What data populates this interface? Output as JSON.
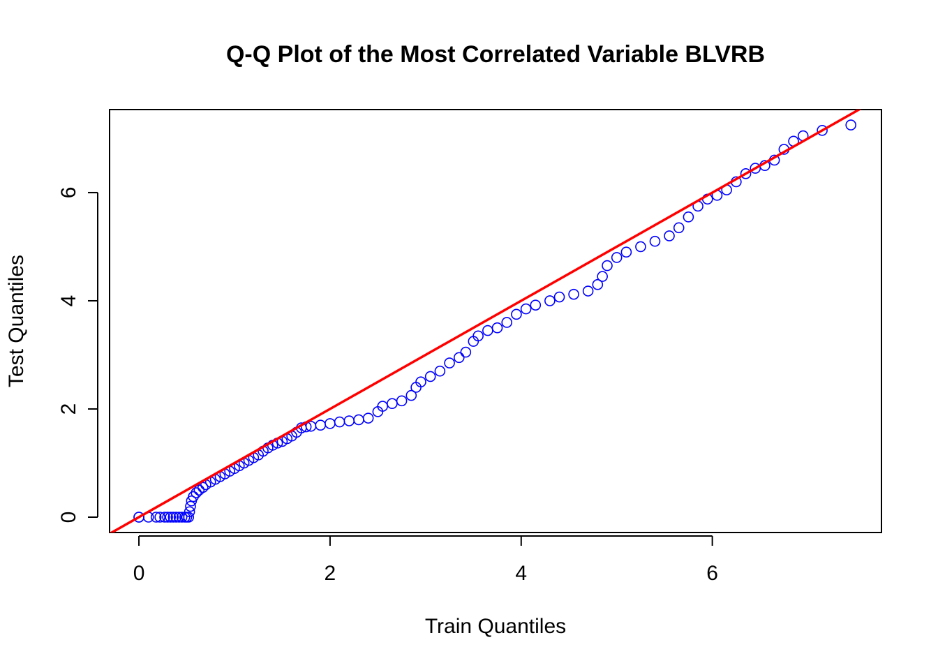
{
  "chart_data": {
    "type": "scatter",
    "title": "Q-Q Plot of the Most Correlated Variable BLVRB",
    "x_label": "Train Quantiles",
    "y_label": "Test Quantiles",
    "color": "#0000ff",
    "x": [
      0,
      0,
      0.1,
      0.18,
      0.22,
      0.27,
      0.3,
      0.33,
      0.36,
      0.39,
      0.42,
      0.45,
      0.48,
      0.5,
      0.52,
      0.53,
      0.54,
      0.55,
      0.57,
      0.6,
      0.63,
      0.67,
      0.7,
      0.75,
      0.8,
      0.85,
      0.9,
      0.95,
      1.0,
      1.05,
      1.1,
      1.15,
      1.2,
      1.25,
      1.3,
      1.35,
      1.4,
      1.45,
      1.5,
      1.55,
      1.6,
      1.65,
      1.7,
      1.75,
      1.8,
      1.9,
      2.0,
      2.1,
      2.2,
      2.3,
      2.4,
      2.5,
      2.55,
      2.65,
      2.75,
      2.85,
      2.9,
      2.95,
      3.05,
      3.15,
      3.25,
      3.35,
      3.42,
      3.5,
      3.55,
      3.65,
      3.75,
      3.85,
      3.95,
      4.05,
      4.15,
      4.3,
      4.4,
      4.55,
      4.7,
      4.8,
      4.85,
      4.9,
      5.0,
      5.1,
      5.25,
      5.4,
      5.55,
      5.65,
      5.75,
      5.85,
      5.95,
      6.05,
      6.15,
      6.25,
      6.35,
      6.45,
      6.55,
      6.65,
      6.75,
      6.85,
      6.95,
      7.15,
      7.45
    ],
    "values": [
      0,
      0,
      0,
      0,
      0,
      0,
      0,
      0,
      0,
      0,
      0,
      0,
      0,
      0,
      0,
      0.1,
      0.2,
      0.3,
      0.38,
      0.45,
      0.5,
      0.55,
      0.6,
      0.65,
      0.7,
      0.75,
      0.8,
      0.85,
      0.9,
      0.95,
      1.0,
      1.05,
      1.1,
      1.15,
      1.22,
      1.28,
      1.33,
      1.37,
      1.4,
      1.45,
      1.5,
      1.57,
      1.65,
      1.67,
      1.68,
      1.7,
      1.73,
      1.76,
      1.78,
      1.8,
      1.83,
      1.95,
      2.05,
      2.1,
      2.15,
      2.25,
      2.4,
      2.5,
      2.6,
      2.7,
      2.85,
      2.95,
      3.05,
      3.25,
      3.35,
      3.45,
      3.5,
      3.6,
      3.75,
      3.85,
      3.92,
      4.0,
      4.07,
      4.12,
      4.18,
      4.3,
      4.45,
      4.65,
      4.8,
      4.9,
      5.0,
      5.1,
      5.2,
      5.35,
      5.55,
      5.75,
      5.88,
      5.95,
      6.05,
      6.2,
      6.35,
      6.45,
      6.5,
      6.6,
      6.8,
      6.95,
      7.05,
      7.15,
      7.25
    ],
    "reference_line": {
      "intercept": 0,
      "slope": 1,
      "color": "#ff0000"
    },
    "xlim": [
      -0.307,
      7.77
    ],
    "ylim": [
      -0.284,
      7.535
    ],
    "xticks": [
      0,
      2,
      4,
      6
    ],
    "yticks": [
      0,
      2,
      4,
      6
    ]
  }
}
